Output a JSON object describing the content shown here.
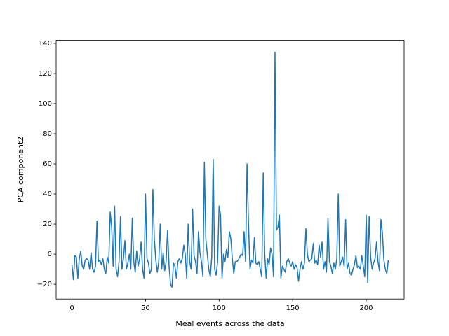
{
  "chart_data": {
    "type": "line",
    "xlabel": "Meal events across the data",
    "ylabel": "PCA component2",
    "xlim": [
      -10.75,
      225.75
    ],
    "ylim": [
      -29.8,
      142
    ],
    "xticks": [
      0,
      50,
      100,
      150,
      200
    ],
    "yticks": [
      {
        "value": -20,
        "label": "−20"
      },
      0,
      20,
      40,
      60,
      80,
      100,
      120,
      140
    ],
    "x": [
      0,
      1,
      2,
      3,
      4,
      5,
      6,
      7,
      8,
      9,
      10,
      11,
      12,
      13,
      14,
      15,
      16,
      17,
      18,
      19,
      20,
      21,
      22,
      23,
      24,
      25,
      26,
      27,
      28,
      29,
      30,
      31,
      32,
      33,
      34,
      35,
      36,
      37,
      38,
      39,
      40,
      41,
      42,
      43,
      44,
      45,
      46,
      47,
      48,
      49,
      50,
      51,
      52,
      53,
      54,
      55,
      56,
      57,
      58,
      59,
      60,
      61,
      62,
      63,
      64,
      65,
      66,
      67,
      68,
      69,
      70,
      71,
      72,
      73,
      74,
      75,
      76,
      77,
      78,
      79,
      80,
      81,
      82,
      83,
      84,
      85,
      86,
      87,
      88,
      89,
      90,
      91,
      92,
      93,
      94,
      95,
      96,
      97,
      98,
      99,
      100,
      101,
      102,
      103,
      104,
      105,
      106,
      107,
      108,
      109,
      110,
      111,
      112,
      113,
      114,
      115,
      116,
      117,
      118,
      119,
      120,
      121,
      122,
      123,
      124,
      125,
      126,
      127,
      128,
      129,
      130,
      131,
      132,
      133,
      134,
      135,
      136,
      137,
      138,
      139,
      140,
      141,
      142,
      143,
      144,
      145,
      146,
      147,
      148,
      149,
      150,
      151,
      152,
      153,
      154,
      155,
      156,
      157,
      158,
      159,
      160,
      161,
      162,
      163,
      164,
      165,
      166,
      167,
      168,
      169,
      170,
      171,
      172,
      173,
      174,
      175,
      176,
      177,
      178,
      179,
      180,
      181,
      182,
      183,
      184,
      185,
      186,
      187,
      188,
      189,
      190,
      191,
      192,
      193,
      194,
      195,
      196,
      197,
      198,
      199,
      200,
      201,
      202,
      203,
      204,
      205,
      206,
      207,
      208,
      209,
      210,
      211,
      212,
      213,
      214,
      215
    ],
    "series": [
      {
        "color": "#1f77b4",
        "values": [
          -7,
          -17,
          -1,
          -2,
          -16,
          -3,
          2,
          -8,
          -10,
          -4,
          -3,
          -4,
          -10,
          1,
          -10,
          -12,
          -8,
          22,
          -5,
          -4,
          -7,
          -3,
          -10,
          -13,
          -2,
          -6,
          28,
          18,
          -8,
          32,
          -10,
          -15,
          -5,
          25,
          -10,
          -3,
          9,
          -10,
          -6,
          0,
          -10,
          24,
          -5,
          -12,
          2,
          -8,
          -3,
          8,
          -10,
          -16,
          40,
          -3,
          -6,
          -13,
          -10,
          43,
          10,
          -4,
          -12,
          -5,
          20,
          -10,
          1,
          -11,
          -5,
          16,
          -8,
          -20,
          -22,
          -6,
          -8,
          -16,
          -5,
          -3,
          -6,
          -3,
          6,
          0,
          -16,
          20,
          -5,
          -10,
          30,
          -1,
          -5,
          -13,
          15,
          1,
          -5,
          -15,
          61,
          10,
          0,
          -10,
          -15,
          -2,
          63,
          -10,
          -14,
          -5,
          32,
          26,
          -16,
          0,
          -5,
          3,
          -2,
          15,
          10,
          -3,
          -13,
          -5,
          -5,
          -4,
          -2,
          0,
          -1,
          15,
          -5,
          60,
          20,
          -10,
          -4,
          -6,
          11,
          -6,
          -7,
          -5,
          -10,
          -15,
          54,
          0,
          -16,
          -3,
          -7,
          4,
          0,
          -15,
          134,
          16,
          18,
          26,
          -16,
          -8,
          -10,
          -12,
          -5,
          -3,
          -6,
          -8,
          -5,
          -10,
          -7,
          -9,
          -18,
          -10,
          -5,
          -10,
          -6,
          17,
          0,
          -5,
          -4,
          -3,
          7,
          -6,
          -4,
          -7,
          6,
          -2,
          8,
          -10,
          -5,
          -12,
          24,
          -5,
          -8,
          -13,
          -6,
          -10,
          -3,
          40,
          -8,
          -5,
          -2,
          -8,
          23,
          -10,
          -6,
          -13,
          -14,
          -10,
          -7,
          -1,
          -9,
          -8,
          -10,
          -1,
          -8,
          -15,
          26,
          -19,
          25,
          -2,
          -10,
          -6,
          -3,
          8,
          -5,
          -11,
          23,
          14,
          -4,
          -10,
          -13,
          -4
        ]
      }
    ]
  }
}
